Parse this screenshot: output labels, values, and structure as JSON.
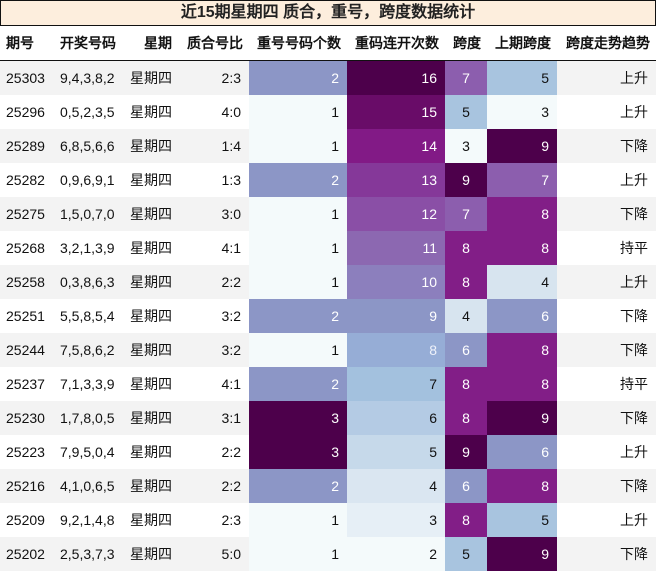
{
  "title": "近15期星期四 质合，重号，跨度数据统计",
  "columns": [
    "期号",
    "开奖号码",
    "星期",
    "质合号比",
    "重号号码个数",
    "重码连开次数",
    "跨度",
    "上期跨度",
    "跨度走势趋势"
  ],
  "colors": {
    "title_bg": "#fdeedd",
    "row_alt_bg": "#f3f3f3",
    "scale": {
      "1": "#f4fafb",
      "2": "#f4fafb",
      "3": "#e8f0f7",
      "4": "#d7e4ef",
      "5": "#c5d9ea",
      "6": "#b4cce4",
      "7": "#a3c1de",
      "8": "#96add6",
      "9": "#8c8fc5",
      "10": "#8c7ebd",
      "11": "#8c66b3",
      "12": "#8a4ea8",
      "13": "#853a9a",
      "14": "#801a86",
      "15": "#690d6a",
      "16": "#4d0349"
    }
  },
  "rows": [
    {
      "issue": "25303",
      "numbers": "9,4,3,8,2",
      "weekday": "星期四",
      "ratio": "2:3",
      "repeat_count": 2,
      "repeat_streak": 16,
      "span": 7,
      "prev_span": 5,
      "trend": "上升"
    },
    {
      "issue": "25296",
      "numbers": "0,5,2,3,5",
      "weekday": "星期四",
      "ratio": "4:0",
      "repeat_count": 1,
      "repeat_streak": 15,
      "span": 5,
      "prev_span": 3,
      "trend": "上升"
    },
    {
      "issue": "25289",
      "numbers": "6,8,5,6,6",
      "weekday": "星期四",
      "ratio": "1:4",
      "repeat_count": 1,
      "repeat_streak": 14,
      "span": 3,
      "prev_span": 9,
      "trend": "下降"
    },
    {
      "issue": "25282",
      "numbers": "0,9,6,9,1",
      "weekday": "星期四",
      "ratio": "1:3",
      "repeat_count": 2,
      "repeat_streak": 13,
      "span": 9,
      "prev_span": 7,
      "trend": "上升"
    },
    {
      "issue": "25275",
      "numbers": "1,5,0,7,0",
      "weekday": "星期四",
      "ratio": "3:0",
      "repeat_count": 1,
      "repeat_streak": 12,
      "span": 7,
      "prev_span": 8,
      "trend": "下降"
    },
    {
      "issue": "25268",
      "numbers": "3,2,1,3,9",
      "weekday": "星期四",
      "ratio": "4:1",
      "repeat_count": 1,
      "repeat_streak": 11,
      "span": 8,
      "prev_span": 8,
      "trend": "持平"
    },
    {
      "issue": "25258",
      "numbers": "0,3,8,6,3",
      "weekday": "星期四",
      "ratio": "2:2",
      "repeat_count": 1,
      "repeat_streak": 10,
      "span": 8,
      "prev_span": 4,
      "trend": "上升"
    },
    {
      "issue": "25251",
      "numbers": "5,5,8,5,4",
      "weekday": "星期四",
      "ratio": "3:2",
      "repeat_count": 2,
      "repeat_streak": 9,
      "span": 4,
      "prev_span": 6,
      "trend": "下降"
    },
    {
      "issue": "25244",
      "numbers": "7,5,8,6,2",
      "weekday": "星期四",
      "ratio": "3:2",
      "repeat_count": 1,
      "repeat_streak": 8,
      "span": 6,
      "prev_span": 8,
      "trend": "下降"
    },
    {
      "issue": "25237",
      "numbers": "7,1,3,3,9",
      "weekday": "星期四",
      "ratio": "4:1",
      "repeat_count": 2,
      "repeat_streak": 7,
      "span": 8,
      "prev_span": 8,
      "trend": "持平"
    },
    {
      "issue": "25230",
      "numbers": "1,7,8,0,5",
      "weekday": "星期四",
      "ratio": "3:1",
      "repeat_count": 3,
      "repeat_streak": 6,
      "span": 8,
      "prev_span": 9,
      "trend": "下降"
    },
    {
      "issue": "25223",
      "numbers": "7,9,5,0,4",
      "weekday": "星期四",
      "ratio": "2:2",
      "repeat_count": 3,
      "repeat_streak": 5,
      "span": 9,
      "prev_span": 6,
      "trend": "上升"
    },
    {
      "issue": "25216",
      "numbers": "4,1,0,6,5",
      "weekday": "星期四",
      "ratio": "2:2",
      "repeat_count": 2,
      "repeat_streak": 4,
      "span": 6,
      "prev_span": 8,
      "trend": "下降"
    },
    {
      "issue": "25209",
      "numbers": "9,2,1,4,8",
      "weekday": "星期四",
      "ratio": "2:3",
      "repeat_count": 1,
      "repeat_streak": 3,
      "span": 8,
      "prev_span": 5,
      "trend": "上升"
    },
    {
      "issue": "25202",
      "numbers": "2,5,3,7,3",
      "weekday": "星期四",
      "ratio": "5:0",
      "repeat_count": 1,
      "repeat_streak": 2,
      "span": 5,
      "prev_span": 9,
      "trend": "下降"
    }
  ]
}
